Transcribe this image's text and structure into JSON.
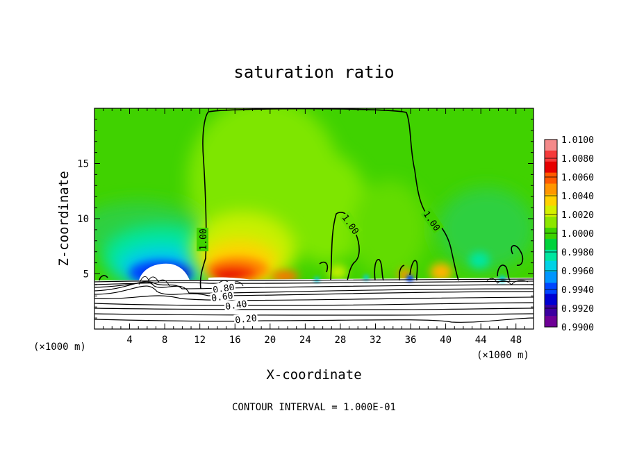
{
  "chart_data": {
    "type": "heatmap",
    "title": "saturation ratio",
    "xlabel": "X-coordinate",
    "ylabel": "Z-coordinate",
    "x_unit": "(×1000 m)",
    "xlim": [
      0,
      50
    ],
    "ylim": [
      0,
      20
    ],
    "x_ticks": [
      4,
      8,
      12,
      16,
      20,
      24,
      28,
      32,
      36,
      40,
      44,
      48
    ],
    "y_ticks": [
      5,
      10,
      15
    ],
    "colorbar": {
      "levels": [
        "1.0100",
        "1.0080",
        "1.0060",
        "1.0040",
        "1.0020",
        "1.0000",
        "0.9980",
        "0.9960",
        "0.9940",
        "0.9920",
        "0.9900"
      ],
      "colors": [
        "#f48a8a",
        "#f53a3a",
        "#e60000",
        "#ff5a00",
        "#ff9600",
        "#ffd200",
        "#d4f000",
        "#8ce600",
        "#3cd200",
        "#00d23c",
        "#00e6a0",
        "#00d2e6",
        "#0096ff",
        "#0046ff",
        "#0000d2",
        "#3c00a0",
        "#6e0096"
      ]
    },
    "contour_labels": [
      "1.00",
      "1.00",
      "1.00",
      "0.80",
      "0.60",
      "0.40",
      "0.20"
    ],
    "footer": "CONTOUR INTERVAL = 1.000E-01"
  }
}
